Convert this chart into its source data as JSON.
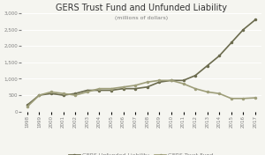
{
  "title": "GERS Trust Fund and Unfunded Liability",
  "subtitle": "(millions of dollars)",
  "years": [
    1998,
    1999,
    2000,
    2001,
    2002,
    2003,
    2004,
    2005,
    2006,
    2007,
    2008,
    2009,
    2010,
    2011,
    2012,
    2013,
    2014,
    2015,
    2016,
    2017
  ],
  "unfunded_liability": [
    200,
    500,
    550,
    500,
    550,
    650,
    650,
    650,
    700,
    700,
    750,
    900,
    950,
    950,
    1100,
    1400,
    1700,
    2100,
    2500,
    2800
  ],
  "trust_fund": [
    150,
    500,
    600,
    550,
    500,
    600,
    700,
    700,
    750,
    800,
    900,
    950,
    950,
    850,
    700,
    600,
    550,
    400,
    400,
    420
  ],
  "unfunded_color": "#6b6b4e",
  "trust_color": "#9e9e7a",
  "background_color": "#f5f5f0",
  "ylim": [
    0,
    3000
  ],
  "yticks": [
    0,
    500,
    1000,
    1500,
    2000,
    2500,
    3000
  ],
  "legend_labels": [
    "GERS Unfunded Liability",
    "GERS Trust Fund"
  ],
  "title_fontsize": 7,
  "subtitle_fontsize": 4.5,
  "axis_fontsize": 4,
  "legend_fontsize": 4.5
}
